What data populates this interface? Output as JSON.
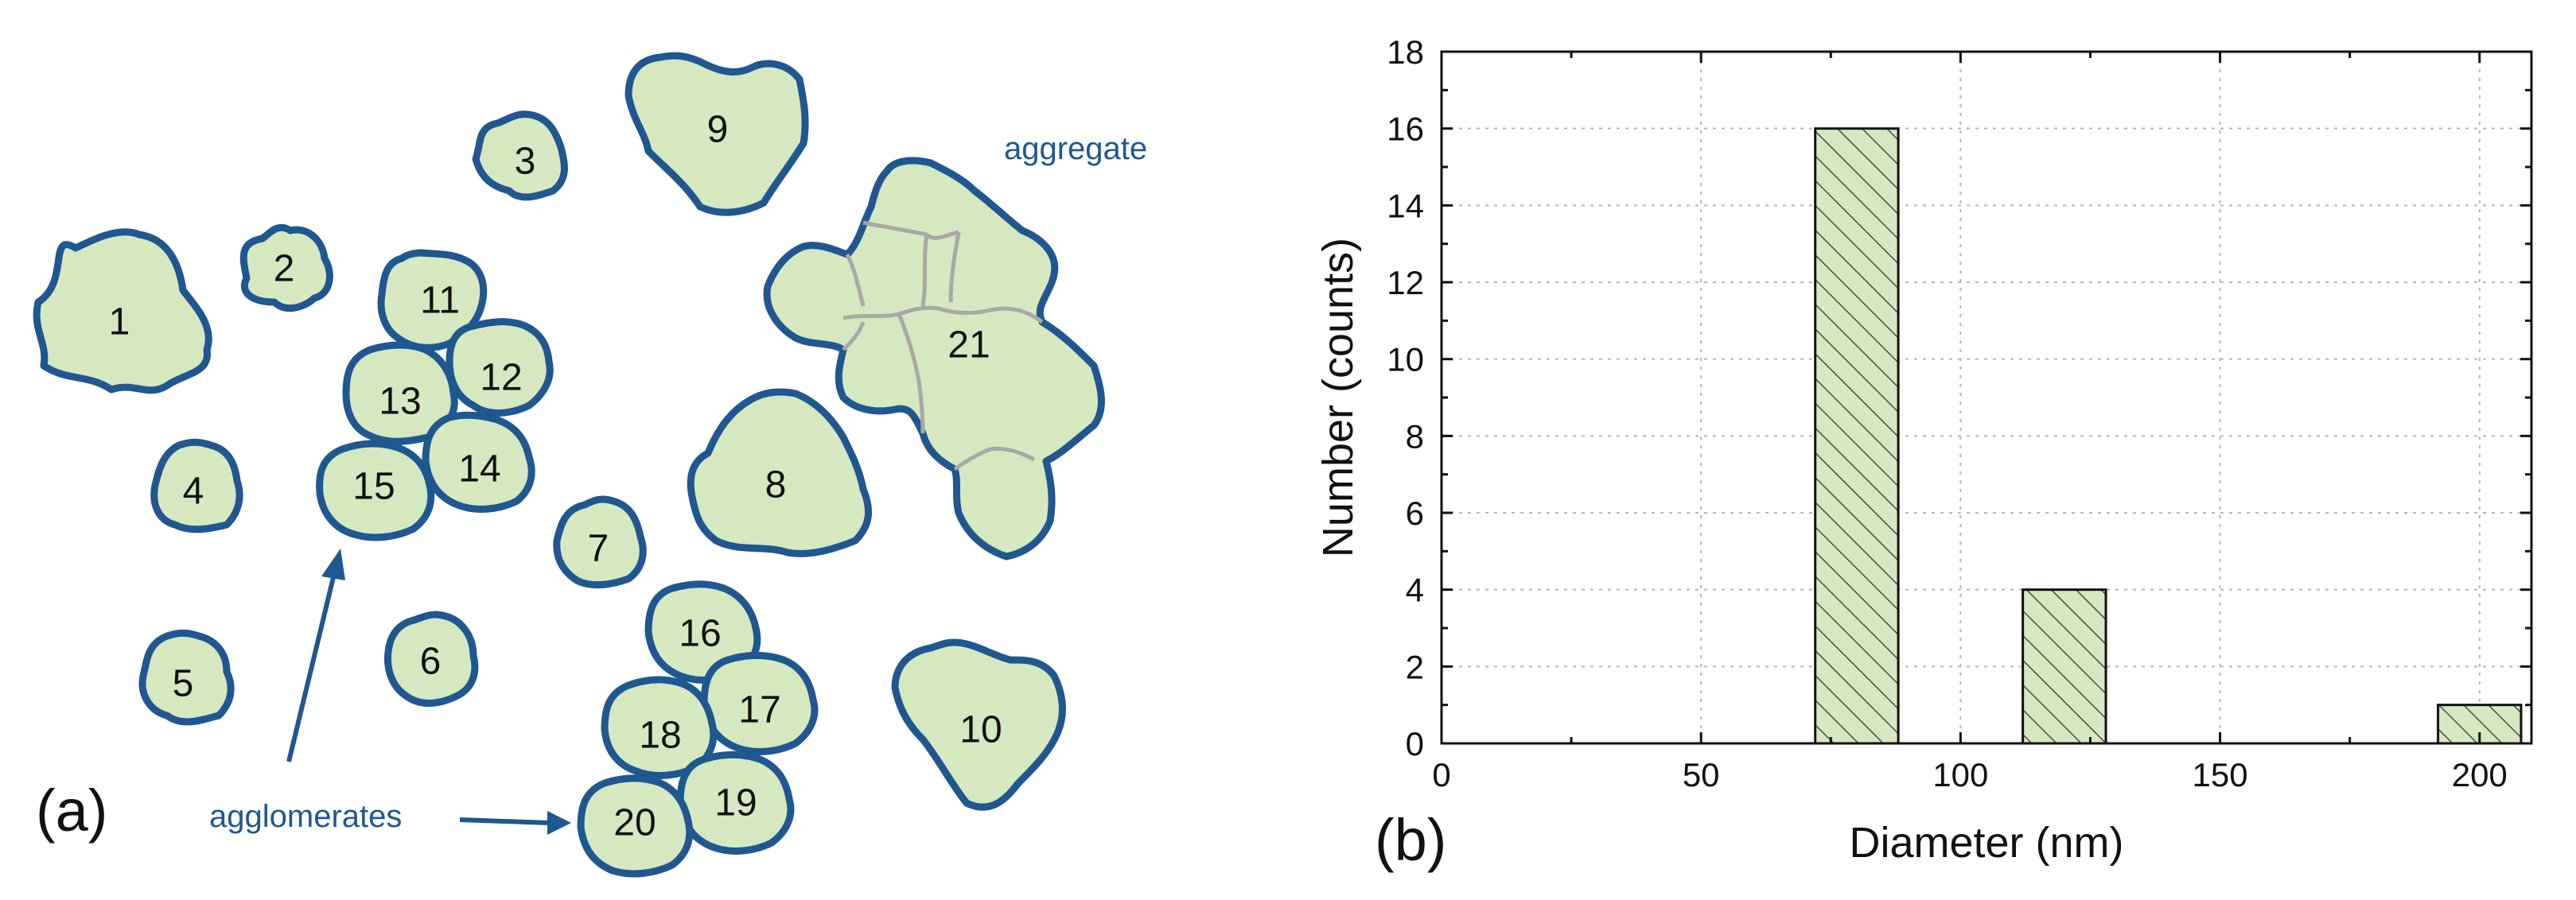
{
  "panel_a": {
    "label": "(a)",
    "particles": [
      "1",
      "2",
      "3",
      "4",
      "5",
      "6",
      "7",
      "8",
      "9",
      "10",
      "11",
      "12",
      "13",
      "14",
      "15",
      "16",
      "17",
      "18",
      "19",
      "20",
      "21"
    ],
    "annotation_aggregate": "aggregate",
    "annotation_agglomerates": "agglomerates"
  },
  "panel_b": {
    "label": "(b)"
  },
  "colors": {
    "particle_fill": "#d6e8bf",
    "particle_outline": "#1f5791",
    "aggregate_internal_lines": "#a8a8a8",
    "bar_fill": "#d6e8bf",
    "bar_hatch": "#4a4a4a"
  },
  "chart_data": {
    "type": "bar",
    "title": "",
    "xlabel": "Diameter (nm)",
    "ylabel": "Number (counts)",
    "xlim": [
      0,
      210
    ],
    "ylim": [
      0,
      18
    ],
    "xticks": [
      "0",
      "50",
      "100",
      "150",
      "200"
    ],
    "yticks": [
      "0",
      "2",
      "4",
      "6",
      "8",
      "10",
      "12",
      "14",
      "16",
      "18"
    ],
    "grid": true,
    "bar_pattern": "diagonal hatch",
    "bars": [
      {
        "x_start": 72,
        "x_end": 88,
        "value": 16
      },
      {
        "x_start": 112,
        "x_end": 128,
        "value": 4
      },
      {
        "x_start": 192,
        "x_end": 208,
        "value": 1
      }
    ]
  }
}
